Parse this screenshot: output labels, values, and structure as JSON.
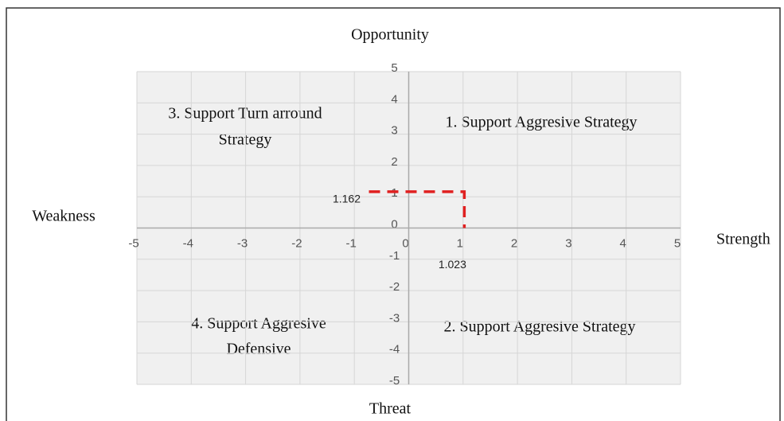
{
  "chart_data": {
    "type": "scatter",
    "top_label": "Opportunity",
    "bottom_label": "Threat",
    "left_label": "Weakness",
    "right_label": "Strength",
    "quadrants": [
      [
        "1. Support Aggresive Strategy"
      ],
      [
        "2. Support Aggresive Strategy"
      ],
      [
        "3. Support Turn arround",
        "Strategy"
      ],
      [
        "4. Support Aggresive",
        "Defensive"
      ]
    ],
    "x": [
      1.023
    ],
    "values": [
      1.162
    ],
    "color": "#e02020",
    "xlim": [
      -5,
      5
    ],
    "ylim": [
      -5,
      5
    ],
    "xticks": [
      -5,
      -4,
      -3,
      -2,
      -1,
      0,
      1,
      2,
      3,
      4,
      5
    ],
    "yticks": [
      -5,
      -4,
      -3,
      -2,
      -1,
      0,
      1,
      2,
      3,
      4,
      5
    ],
    "grid": true
  }
}
